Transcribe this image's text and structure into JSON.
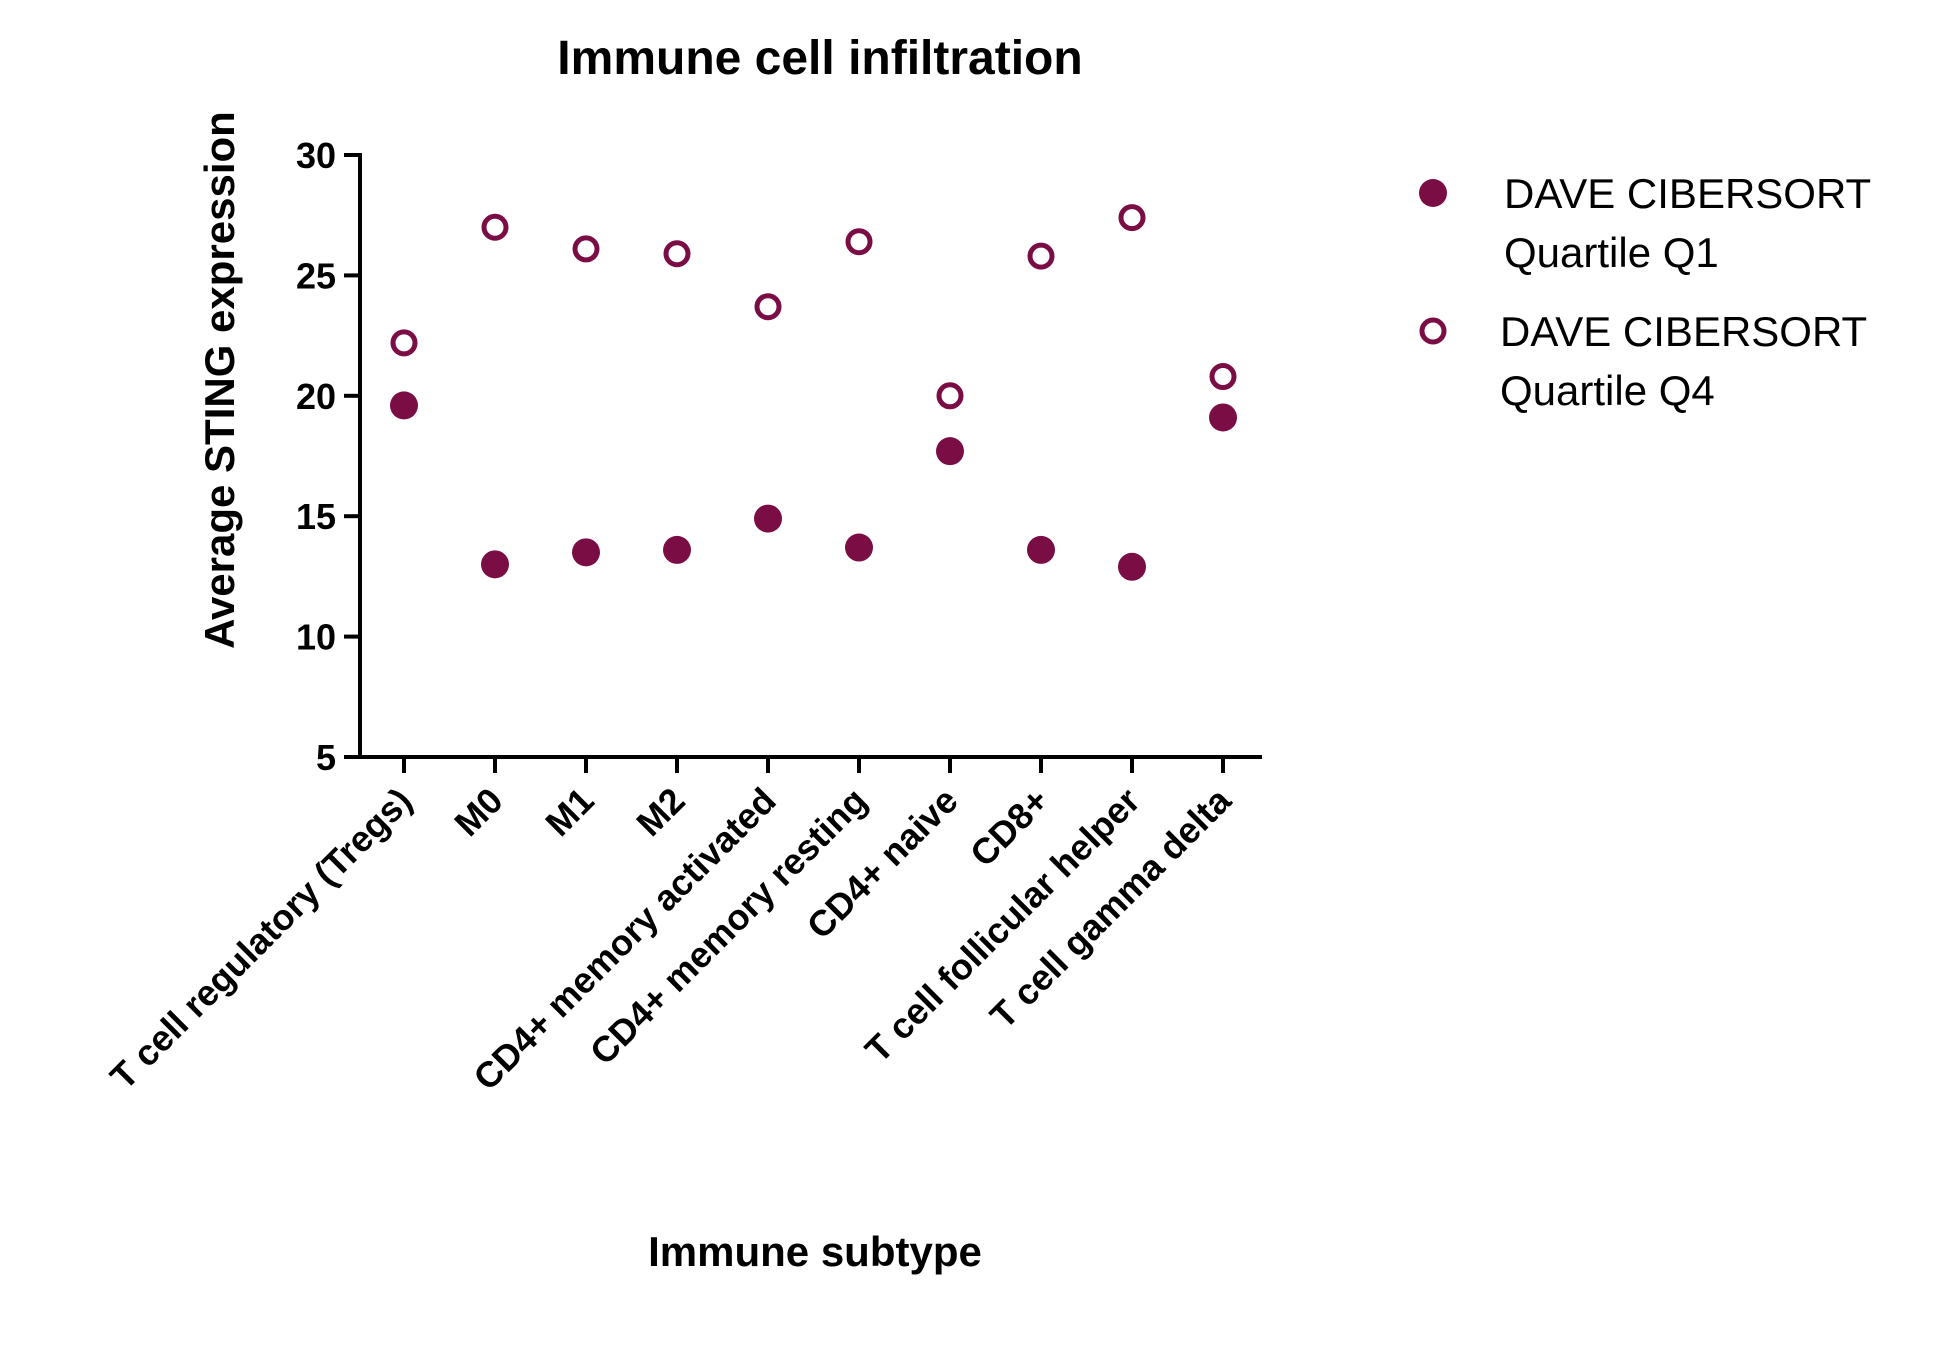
{
  "chart_data": {
    "type": "scatter",
    "title": "Immune cell infiltration",
    "xlabel": "Immune subtype",
    "ylabel": "Average STING expression",
    "ylim": [
      5,
      30
    ],
    "yticks": [
      5,
      10,
      15,
      20,
      25,
      30
    ],
    "categories": [
      "T cell regulatory (Tregs)",
      "M0",
      "M1",
      "M2",
      "CD4+ memory activated",
      "CD4+ memory resting",
      "CD4+ naive",
      "CD8+",
      "T cell follicular helper",
      "T cell gamma delta"
    ],
    "series": [
      {
        "name_lines": [
          "DAVE CIBERSORT",
          "Quartile Q1"
        ],
        "marker": "filled-circle",
        "values": [
          19.6,
          13.0,
          13.5,
          13.6,
          14.9,
          13.7,
          17.7,
          13.6,
          12.9,
          19.1
        ]
      },
      {
        "name_lines": [
          "DAVE CIBERSORT",
          "Quartile Q4"
        ],
        "marker": "open-circle",
        "values": [
          22.2,
          27.0,
          26.1,
          25.9,
          23.7,
          26.4,
          20.0,
          25.8,
          27.4,
          20.8
        ]
      }
    ],
    "legend_position": "right",
    "grid": false,
    "colors": {
      "marker": "#7b0d45"
    }
  }
}
